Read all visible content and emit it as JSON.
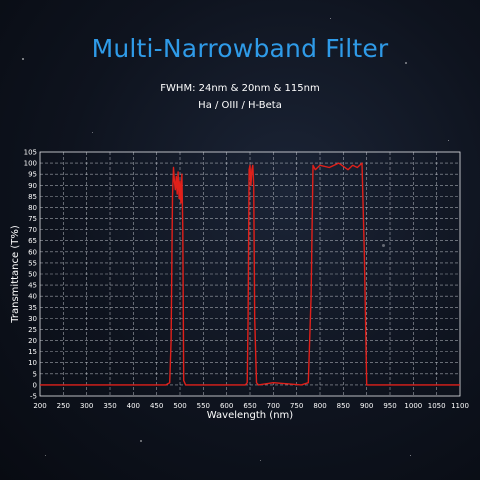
{
  "header": {
    "title": "Multi-Narrowband Filter",
    "fwhm": "FWHM:  24nm & 20nm & 115nm",
    "lines": "Ha / OIII / H-Beta"
  },
  "colors": {
    "title": "#2f9be8",
    "curve": "#e0201a",
    "grid": "#cfd3da",
    "text": "#ffffff"
  },
  "chart_data": {
    "type": "line",
    "xlabel": "Wavelength (nm)",
    "ylabel": "Transmittance (T%)",
    "xlim": [
      200,
      1100
    ],
    "ylim": [
      -5,
      105
    ],
    "xticks": [
      200,
      250,
      300,
      350,
      400,
      450,
      500,
      550,
      600,
      650,
      700,
      750,
      800,
      850,
      900,
      950,
      1000,
      1050,
      1100
    ],
    "yticks": [
      -5,
      0,
      5,
      10,
      15,
      20,
      25,
      30,
      35,
      40,
      45,
      50,
      55,
      60,
      65,
      70,
      75,
      80,
      85,
      90,
      95,
      100,
      105
    ],
    "grid": true,
    "series": [
      {
        "x": [
          200,
          470,
          478,
          481,
          484,
          486,
          488,
          490,
          492,
          494,
          496,
          498,
          500,
          502,
          504,
          506,
          508,
          512,
          640,
          644,
          646,
          648,
          650,
          652,
          654,
          656,
          658,
          660,
          664,
          668,
          700,
          760,
          775,
          781,
          785,
          790,
          800,
          820,
          840,
          860,
          870,
          880,
          890,
          895,
          900,
          1100
        ],
        "y": [
          0,
          0,
          1,
          20,
          85,
          98,
          92,
          88,
          94,
          86,
          96,
          84,
          92,
          82,
          95,
          70,
          2,
          0,
          0,
          1,
          30,
          97,
          99,
          90,
          97,
          99,
          90,
          30,
          1,
          0,
          1,
          0,
          1,
          40,
          99,
          97,
          99,
          98,
          100,
          97,
          99,
          98,
          100,
          60,
          0,
          0
        ]
      }
    ]
  }
}
